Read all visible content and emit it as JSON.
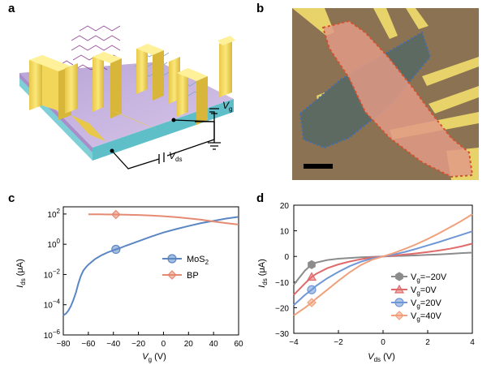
{
  "panels": {
    "a": "a",
    "b": "b",
    "c": "c",
    "d": "d"
  },
  "panel_a": {
    "label_vg": "V",
    "label_vg_sub": "g",
    "label_vds": "V",
    "label_vds_sub": "ds"
  },
  "chart_data": [
    {
      "type": "line",
      "panel": "c",
      "xlabel": "V",
      "xlabel_sub": "g",
      "xlabel_unit": " (V)",
      "ylabel": "I",
      "ylabel_sub": "ds",
      "ylabel_unit": " (μA)",
      "yscale": "log",
      "xlim": [
        -80,
        60
      ],
      "ylim": [
        1e-06,
        300
      ],
      "xticks": [
        -80,
        -60,
        -40,
        -20,
        0,
        20,
        40,
        60
      ],
      "yticks": [
        {
          "base": "10",
          "exp": "2",
          "value": 100
        },
        {
          "base": "10",
          "exp": "0",
          "value": 1
        },
        {
          "base": "10",
          "exp": "-2",
          "value": 0.01
        },
        {
          "base": "10",
          "exp": "-4",
          "value": 0.0001
        },
        {
          "base": "10",
          "exp": "-6",
          "value": 1e-06
        }
      ],
      "legend_position": "center-right",
      "series": [
        {
          "name": "MoS",
          "name_sub": "2",
          "color": "#5b86c4",
          "marker_x": -38,
          "x": [
            -80,
            -78,
            -76,
            -74,
            -72,
            -70,
            -68,
            -66,
            -64,
            -62,
            -60,
            -55,
            -50,
            -45,
            -40,
            -35,
            -30,
            -20,
            -10,
            0,
            10,
            20,
            30,
            40,
            50,
            60
          ],
          "y": [
            2e-05,
            2.5e-05,
            4e-05,
            8e-05,
            0.0002,
            0.0006,
            0.0025,
            0.008,
            0.018,
            0.03,
            0.045,
            0.1,
            0.18,
            0.28,
            0.4,
            0.55,
            0.8,
            1.6,
            3.2,
            6,
            10,
            16,
            25,
            35,
            50,
            65
          ]
        },
        {
          "name": "BP",
          "color": "#e58b73",
          "marker_x": -38,
          "x": [
            -60,
            -50,
            -40,
            -30,
            -20,
            -10,
            0,
            10,
            20,
            30,
            40,
            50,
            60
          ],
          "y": [
            95,
            95,
            93,
            90,
            86,
            80,
            72,
            62,
            52,
            42,
            32,
            25,
            20
          ]
        }
      ]
    },
    {
      "type": "line",
      "panel": "d",
      "xlabel": "V",
      "xlabel_sub": "ds",
      "xlabel_unit": " (V)",
      "ylabel": "I",
      "ylabel_sub": "ds",
      "ylabel_unit": " (μA)",
      "xlim": [
        -4,
        4
      ],
      "ylim": [
        -30,
        20
      ],
      "xticks": [
        -4,
        -2,
        0,
        2,
        4
      ],
      "yticks": [
        20,
        10,
        0,
        -10,
        -20,
        -30
      ],
      "legend_position": "bottom-left",
      "series": [
        {
          "name_prefix": "V",
          "name_sub": "g",
          "name_suffix": "=−20V",
          "color": "#8c8c8c",
          "marker": "hexagon",
          "marker_x": -3.2,
          "x": [
            -4,
            -3.5,
            -3.2,
            -3,
            -2.5,
            -2,
            -1.5,
            -1,
            -0.5,
            0,
            0.5,
            1,
            1.5,
            2,
            2.5,
            3,
            3.5,
            4
          ],
          "y": [
            -11,
            -5.5,
            -3.2,
            -2.4,
            -1.4,
            -0.9,
            -0.6,
            -0.35,
            -0.15,
            0,
            0.12,
            0.25,
            0.4,
            0.6,
            0.8,
            1.0,
            1.3,
            1.5
          ]
        },
        {
          "name_prefix": "V",
          "name_sub": "g",
          "name_suffix": "=0V",
          "color": "#e06a6a",
          "marker": "triangle",
          "marker_x": -3.2,
          "x": [
            -4,
            -3.5,
            -3.2,
            -3,
            -2.5,
            -2,
            -1.5,
            -1,
            -0.5,
            0,
            0.5,
            1,
            1.5,
            2,
            2.5,
            3,
            3.5,
            4
          ],
          "y": [
            -15,
            -10.5,
            -8,
            -6.8,
            -4.6,
            -3.1,
            -2.0,
            -1.1,
            -0.4,
            0,
            0.35,
            0.75,
            1.2,
            1.7,
            2.3,
            3.0,
            3.9,
            5.0
          ]
        },
        {
          "name_prefix": "V",
          "name_sub": "g",
          "name_suffix": "=20V",
          "color": "#6f97d6",
          "marker": "circle",
          "marker_x": -3.2,
          "x": [
            -4,
            -3.5,
            -3.2,
            -3,
            -2.5,
            -2,
            -1.5,
            -1,
            -0.5,
            0,
            0.5,
            1,
            1.5,
            2,
            2.5,
            3,
            3.5,
            4
          ],
          "y": [
            -19,
            -15,
            -13,
            -11.5,
            -8.5,
            -6.0,
            -3.8,
            -2.1,
            -0.8,
            0,
            0.8,
            1.8,
            3.0,
            4.3,
            5.6,
            7.0,
            8.4,
            9.8
          ]
        },
        {
          "name_prefix": "V",
          "name_sub": "g",
          "name_suffix": "=40V",
          "color": "#f0a17c",
          "marker": "diamond",
          "marker_x": -3.2,
          "x": [
            -4,
            -3.5,
            -3.2,
            -3,
            -2.5,
            -2,
            -1.5,
            -1,
            -0.5,
            0,
            0.5,
            1,
            1.5,
            2,
            2.5,
            3,
            3.5,
            4
          ],
          "y": [
            -23,
            -20,
            -18,
            -16.5,
            -13,
            -9.5,
            -6.2,
            -3.4,
            -1.3,
            0,
            1.4,
            3.0,
            4.8,
            6.8,
            9.0,
            11.4,
            13.8,
            16.5
          ]
        }
      ]
    }
  ]
}
